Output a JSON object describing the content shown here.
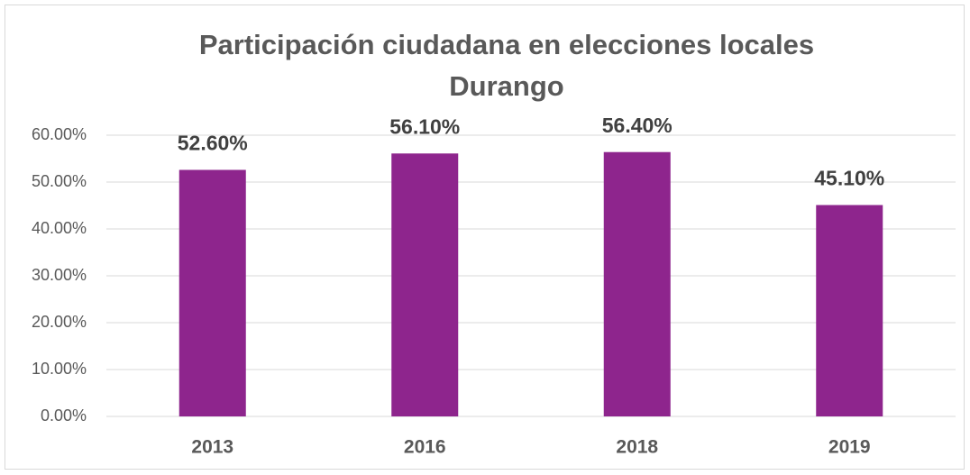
{
  "chart_data": {
    "type": "bar",
    "title": [
      "Participación ciudadana en elecciones locales",
      "Durango"
    ],
    "categories": [
      "2013",
      "2016",
      "2018",
      "2019"
    ],
    "values": [
      52.6,
      56.1,
      56.4,
      45.1
    ],
    "value_labels": [
      "52.60%",
      "56.10%",
      "56.40%",
      "45.10%"
    ],
    "color": "#8e258d",
    "ylim": [
      0,
      60
    ],
    "yticks": [
      {
        "value": 0,
        "label": "0.00%"
      },
      {
        "value": 10,
        "label": "10.00%"
      },
      {
        "value": 20,
        "label": "20.00%"
      },
      {
        "value": 30,
        "label": "30.00%"
      },
      {
        "value": 40,
        "label": "40.00%"
      },
      {
        "value": 50,
        "label": "50.00%"
      },
      {
        "value": 60,
        "label": "60.00%"
      }
    ],
    "grid": true
  }
}
